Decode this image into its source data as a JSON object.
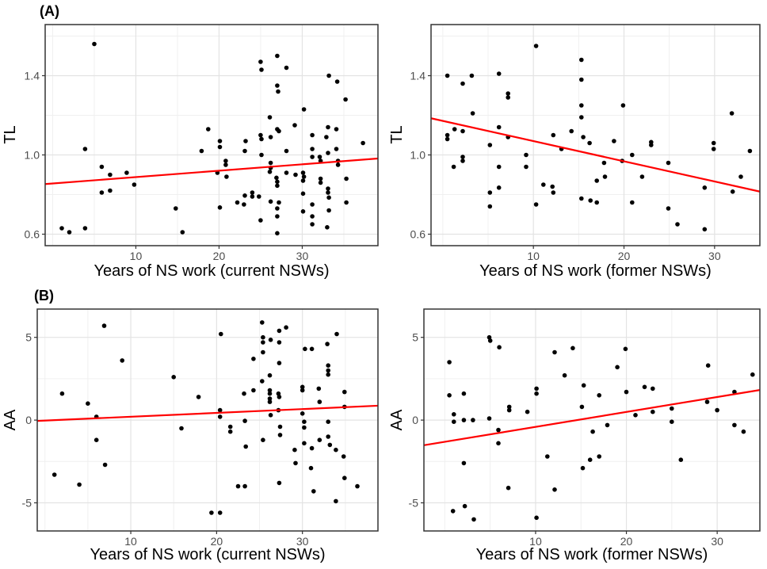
{
  "figure": {
    "panel_a_label": "(A)",
    "panel_b_label": "(B)",
    "colors": {
      "background": "#FFFFFF",
      "point": "#000000",
      "regression_line": "#FF0000",
      "grid_major": "#E3E3E3",
      "grid_minor": "#F0F0F0",
      "panel_border": "#333333",
      "tick_mark": "#333333",
      "tick_label": "#4D4D4D",
      "axis_title": "#000000"
    }
  },
  "chart_data": [
    {
      "id": "tl_current",
      "type": "scatter",
      "panel_label": "(A)",
      "xlabel": "Years of NS work (current NSWs)",
      "ylabel": "TL",
      "xlim": [
        -0.9,
        39.1
      ],
      "ylim": [
        0.542,
        1.658
      ],
      "xticks": [
        10,
        20,
        30
      ],
      "xtick_labels": [
        "10",
        "20",
        "30"
      ],
      "yticks": [
        0.6,
        1.0,
        1.4
      ],
      "ytick_labels": [
        "0.6",
        "1.0",
        "1.4"
      ],
      "xminor": [
        0,
        5,
        15,
        25,
        35
      ],
      "yminor": [
        0.8,
        1.2,
        1.6
      ],
      "grid": true,
      "legend": "none",
      "regression_line": {
        "x1": -0.9,
        "y1": 0.853,
        "x2": 39.1,
        "y2": 0.982
      },
      "points": [
        [
          5,
          1.56
        ],
        [
          3.9,
          1.03
        ],
        [
          5.9,
          0.94
        ],
        [
          6.9,
          0.9
        ],
        [
          8.9,
          0.91
        ],
        [
          9.8,
          0.85
        ],
        [
          5.9,
          0.81
        ],
        [
          6.9,
          0.82
        ],
        [
          14.8,
          0.73
        ],
        [
          1.1,
          0.63
        ],
        [
          2,
          0.61
        ],
        [
          3.9,
          0.63
        ],
        [
          15.6,
          0.61
        ],
        [
          18.7,
          1.13
        ],
        [
          17.9,
          1.02
        ],
        [
          27,
          1.5
        ],
        [
          25,
          1.47
        ],
        [
          25.1,
          1.43
        ],
        [
          28.1,
          1.44
        ],
        [
          33.2,
          1.4
        ],
        [
          34.2,
          1.37
        ],
        [
          27,
          1.35
        ],
        [
          27.1,
          1.32
        ],
        [
          35.2,
          1.28
        ],
        [
          30.2,
          1.23
        ],
        [
          26.1,
          1.19
        ],
        [
          29.1,
          1.15
        ],
        [
          27,
          1.13
        ],
        [
          27.2,
          1.12
        ],
        [
          33.1,
          1.14
        ],
        [
          34.1,
          1.13
        ],
        [
          25,
          1.1
        ],
        [
          25.1,
          1.08
        ],
        [
          26.2,
          1.09
        ],
        [
          20.1,
          1.07
        ],
        [
          23.2,
          1.07
        ],
        [
          31.2,
          1.1
        ],
        [
          32.9,
          1.09
        ],
        [
          37.3,
          1.06
        ],
        [
          20.1,
          1.04
        ],
        [
          23.1,
          1.02
        ],
        [
          28.1,
          1.02
        ],
        [
          31.2,
          1.03
        ],
        [
          34.1,
          1.03
        ],
        [
          25.1,
          1
        ],
        [
          31.2,
          0.99
        ],
        [
          33.1,
          1.01
        ],
        [
          20.8,
          0.97
        ],
        [
          20.8,
          0.95
        ],
        [
          26.2,
          0.96
        ],
        [
          26.2,
          0.935
        ],
        [
          26.1,
          0.915
        ],
        [
          32.1,
          0.99
        ],
        [
          32.2,
          0.97
        ],
        [
          34.3,
          0.97
        ],
        [
          34.3,
          0.95
        ],
        [
          19.8,
          0.91
        ],
        [
          20.9,
          0.89
        ],
        [
          28.1,
          0.91
        ],
        [
          29.2,
          0.9
        ],
        [
          30.1,
          0.91
        ],
        [
          30.2,
          0.89
        ],
        [
          30.1,
          0.87
        ],
        [
          26.9,
          0.885
        ],
        [
          27,
          0.865
        ],
        [
          27,
          0.845
        ],
        [
          32.2,
          0.88
        ],
        [
          32.2,
          0.86
        ],
        [
          35.3,
          0.88
        ],
        [
          33.1,
          0.83
        ],
        [
          33.1,
          0.81
        ],
        [
          30.1,
          0.805
        ],
        [
          24,
          0.81
        ],
        [
          24,
          0.79
        ],
        [
          23.1,
          0.795
        ],
        [
          24.8,
          0.79
        ],
        [
          26.2,
          0.765
        ],
        [
          27.2,
          0.76
        ],
        [
          22.2,
          0.76
        ],
        [
          23,
          0.75
        ],
        [
          31.2,
          0.75
        ],
        [
          33.2,
          0.785
        ],
        [
          35.3,
          0.76
        ],
        [
          20.1,
          0.735
        ],
        [
          27,
          0.73
        ],
        [
          30.1,
          0.715
        ],
        [
          33.2,
          0.72
        ],
        [
          27,
          0.69
        ],
        [
          31.2,
          0.69
        ],
        [
          25,
          0.67
        ],
        [
          31.2,
          0.65
        ],
        [
          33,
          0.635
        ],
        [
          27,
          0.605
        ]
      ]
    },
    {
      "id": "tl_former",
      "type": "scatter",
      "panel_label": "",
      "xlabel": "Years of NS work (former NSWs)",
      "ylabel": "TL",
      "xlim": [
        -1.3,
        35.0
      ],
      "ylim": [
        0.542,
        1.658
      ],
      "xticks": [
        10,
        20,
        30
      ],
      "xtick_labels": [
        "10",
        "20",
        "30"
      ],
      "yticks": [
        0.6,
        1.0,
        1.4
      ],
      "ytick_labels": [
        "0.6",
        "1.0",
        "1.4"
      ],
      "xminor": [
        0,
        5,
        15,
        25
      ],
      "yminor": [
        0.8,
        1.2,
        1.6
      ],
      "grid": true,
      "legend": "none",
      "regression_line": {
        "x1": -1.3,
        "y1": 1.185,
        "x2": 35.0,
        "y2": 0.815
      },
      "points": [
        [
          10.3,
          1.55
        ],
        [
          15.3,
          1.48
        ],
        [
          0.5,
          1.4
        ],
        [
          3.2,
          1.4
        ],
        [
          2.2,
          1.36
        ],
        [
          6.2,
          1.41
        ],
        [
          15.3,
          1.38
        ],
        [
          7.2,
          1.31
        ],
        [
          7.2,
          1.29
        ],
        [
          15.3,
          1.25
        ],
        [
          3.3,
          1.21
        ],
        [
          15.3,
          1.19
        ],
        [
          1.3,
          1.13
        ],
        [
          2.2,
          1.12
        ],
        [
          6.2,
          1.14
        ],
        [
          0.5,
          1.1
        ],
        [
          0.5,
          1.08
        ],
        [
          7.2,
          1.09
        ],
        [
          12.2,
          1.1
        ],
        [
          14.2,
          1.12
        ],
        [
          15.5,
          1.09
        ],
        [
          16.2,
          1.06
        ],
        [
          5.2,
          1.05
        ],
        [
          13.1,
          1.03
        ],
        [
          2.2,
          0.99
        ],
        [
          2.2,
          0.97
        ],
        [
          1.2,
          0.94
        ],
        [
          9.2,
          1
        ],
        [
          6.2,
          0.94
        ],
        [
          9.2,
          0.94
        ],
        [
          11.1,
          0.85
        ],
        [
          12.1,
          0.84
        ],
        [
          12.2,
          0.81
        ],
        [
          6.2,
          0.835
        ],
        [
          5.2,
          0.81
        ],
        [
          15.3,
          0.78
        ],
        [
          16.3,
          0.77
        ],
        [
          5.2,
          0.74
        ],
        [
          10.3,
          0.75
        ],
        [
          19.9,
          1.25
        ],
        [
          31.9,
          1.21
        ],
        [
          18.9,
          1.07
        ],
        [
          23,
          1.065
        ],
        [
          23,
          1.05
        ],
        [
          29.9,
          1.06
        ],
        [
          29.9,
          1.03
        ],
        [
          33.9,
          1.02
        ],
        [
          20.9,
          1
        ],
        [
          19.8,
          0.97
        ],
        [
          17.8,
          0.96
        ],
        [
          24.9,
          0.96
        ],
        [
          17,
          0.87
        ],
        [
          17.9,
          0.89
        ],
        [
          22,
          0.89
        ],
        [
          32.9,
          0.89
        ],
        [
          28.9,
          0.835
        ],
        [
          32,
          0.815
        ],
        [
          17,
          0.76
        ],
        [
          20.9,
          0.76
        ],
        [
          24.9,
          0.73
        ],
        [
          25.9,
          0.65
        ],
        [
          28.9,
          0.625
        ]
      ]
    },
    {
      "id": "aa_current",
      "type": "scatter",
      "panel_label": "(B)",
      "xlabel": "Years of NS work (current NSWs)",
      "ylabel": "AA",
      "xlim": [
        -0.9,
        38.8
      ],
      "ylim": [
        -6.7,
        6.71
      ],
      "xticks": [
        10,
        20,
        30
      ],
      "xtick_labels": [
        "10",
        "20",
        "30"
      ],
      "yticks": [
        -5,
        0,
        5
      ],
      "ytick_labels": [
        "-5",
        "0",
        "5"
      ],
      "xminor": [
        0,
        5,
        15,
        25,
        35
      ],
      "yminor": [
        -2.5,
        2.5
      ],
      "grid": true,
      "legend": "none",
      "regression_line": {
        "x1": -0.9,
        "y1": -0.05,
        "x2": 38.8,
        "y2": 0.87
      },
      "points": [
        [
          6.9,
          5.7
        ],
        [
          9,
          3.6
        ],
        [
          15,
          2.6
        ],
        [
          2,
          1.6
        ],
        [
          17.9,
          1.4
        ],
        [
          5,
          1
        ],
        [
          6,
          0.2
        ],
        [
          15.9,
          -0.5
        ],
        [
          6,
          -1.2
        ],
        [
          7,
          -2.7
        ],
        [
          1.1,
          -3.3
        ],
        [
          4,
          -3.9
        ],
        [
          25.3,
          5.9
        ],
        [
          28.1,
          5.6
        ],
        [
          27.3,
          5.4
        ],
        [
          20.5,
          5.2
        ],
        [
          34,
          5.2
        ],
        [
          25.4,
          5
        ],
        [
          25.4,
          4.7
        ],
        [
          26.3,
          4.85
        ],
        [
          27.3,
          4.7
        ],
        [
          32.9,
          4.6
        ],
        [
          30.3,
          4.3
        ],
        [
          31.1,
          4.3
        ],
        [
          25.4,
          4.1
        ],
        [
          24.3,
          3.7
        ],
        [
          27.3,
          3.45
        ],
        [
          33,
          3.3
        ],
        [
          33,
          3
        ],
        [
          33,
          2.75
        ],
        [
          26.2,
          2.7
        ],
        [
          25.3,
          2.35
        ],
        [
          30,
          2
        ],
        [
          30,
          1.8
        ],
        [
          24.3,
          1.8
        ],
        [
          23.2,
          1.6
        ],
        [
          26.2,
          1.8
        ],
        [
          26.2,
          1.6
        ],
        [
          27.2,
          1.6
        ],
        [
          27.3,
          1.4
        ],
        [
          31.9,
          1.9
        ],
        [
          34.9,
          1.7
        ],
        [
          26.2,
          1.3
        ],
        [
          26.2,
          1.1
        ],
        [
          32,
          1.1
        ],
        [
          20.4,
          0.6
        ],
        [
          20.4,
          0.2
        ],
        [
          27.2,
          0.6
        ],
        [
          30,
          0.4
        ],
        [
          34.9,
          0.8
        ],
        [
          26.3,
          0.3
        ],
        [
          23.3,
          -0.05
        ],
        [
          30.2,
          -0.1
        ],
        [
          21.6,
          -0.4
        ],
        [
          21.6,
          -0.7
        ],
        [
          27.4,
          -0.4
        ],
        [
          27.4,
          -0.9
        ],
        [
          30.2,
          -0.45
        ],
        [
          25.4,
          -1.2
        ],
        [
          33,
          -0.1
        ],
        [
          33,
          -1
        ],
        [
          30.2,
          -1.4
        ],
        [
          23.4,
          -1.6
        ],
        [
          32,
          -1.2
        ],
        [
          29.1,
          -1.8
        ],
        [
          33.2,
          -1.5
        ],
        [
          31.1,
          -1.7
        ],
        [
          33.9,
          -1.8
        ],
        [
          29.2,
          -2.6
        ],
        [
          34.8,
          -2.2
        ],
        [
          31,
          -2.9
        ],
        [
          22.5,
          -4
        ],
        [
          23.3,
          -4
        ],
        [
          27.3,
          -3.8
        ],
        [
          31.3,
          -4.3
        ],
        [
          34.9,
          -3.5
        ],
        [
          36.4,
          -4
        ],
        [
          33.9,
          -4.9
        ],
        [
          19.4,
          -5.6
        ],
        [
          20.4,
          -5.6
        ]
      ]
    },
    {
      "id": "aa_former",
      "type": "scatter",
      "panel_label": "",
      "xlabel": "Years of NS work (former NSWs)",
      "ylabel": "AA",
      "xlim": [
        -2.3,
        34.7
      ],
      "ylim": [
        -6.7,
        6.71
      ],
      "xticks": [
        10,
        20,
        30
      ],
      "xtick_labels": [
        "10",
        "20",
        "30"
      ],
      "yticks": [
        -5,
        0,
        5
      ],
      "ytick_labels": [
        "-5",
        "0",
        "5"
      ],
      "xminor": [
        0,
        5,
        15,
        25
      ],
      "yminor": [
        -2.5,
        2.5
      ],
      "grid": true,
      "legend": "none",
      "regression_line": {
        "x1": -2.3,
        "y1": -1.52,
        "x2": 34.7,
        "y2": 1.82
      },
      "points": [
        [
          4.9,
          5
        ],
        [
          5,
          4.8
        ],
        [
          6,
          4.4
        ],
        [
          12.1,
          4.1
        ],
        [
          14.1,
          4.35
        ],
        [
          0.5,
          3.5
        ],
        [
          13.2,
          2.7
        ],
        [
          0.5,
          1.5
        ],
        [
          2.1,
          1.6
        ],
        [
          10.1,
          1.9
        ],
        [
          10.1,
          1.6
        ],
        [
          7.1,
          0.8
        ],
        [
          7.1,
          0.6
        ],
        [
          9.1,
          0.5
        ],
        [
          1,
          0.35
        ],
        [
          1,
          -0.1
        ],
        [
          2.1,
          0
        ],
        [
          3.1,
          0
        ],
        [
          4.9,
          0.1
        ],
        [
          5.9,
          -0.6
        ],
        [
          5.9,
          -1.4
        ],
        [
          11.3,
          -2.2
        ],
        [
          2.1,
          -2.6
        ],
        [
          7,
          -4.1
        ],
        [
          12.1,
          -4.2
        ],
        [
          2.2,
          -5.2
        ],
        [
          0.9,
          -5.5
        ],
        [
          3.2,
          -6
        ],
        [
          10.1,
          -5.9
        ],
        [
          15.3,
          2.1
        ],
        [
          15.1,
          0.8
        ],
        [
          16,
          -2.4
        ],
        [
          16.3,
          -0.7
        ],
        [
          15.2,
          -2.9
        ],
        [
          19.9,
          4.3
        ],
        [
          19,
          3.2
        ],
        [
          29,
          3.3
        ],
        [
          33.9,
          2.75
        ],
        [
          17,
          1.5
        ],
        [
          20,
          1.7
        ],
        [
          22,
          2
        ],
        [
          22.9,
          1.9
        ],
        [
          31.9,
          1.7
        ],
        [
          28.9,
          1.1
        ],
        [
          22.9,
          0.5
        ],
        [
          25,
          0.7
        ],
        [
          21,
          0.3
        ],
        [
          25,
          -0.1
        ],
        [
          30,
          0.6
        ],
        [
          17.9,
          -0.3
        ],
        [
          31.9,
          -0.3
        ],
        [
          32.9,
          -0.7
        ],
        [
          17,
          -2.2
        ],
        [
          26,
          -2.4
        ]
      ]
    }
  ]
}
